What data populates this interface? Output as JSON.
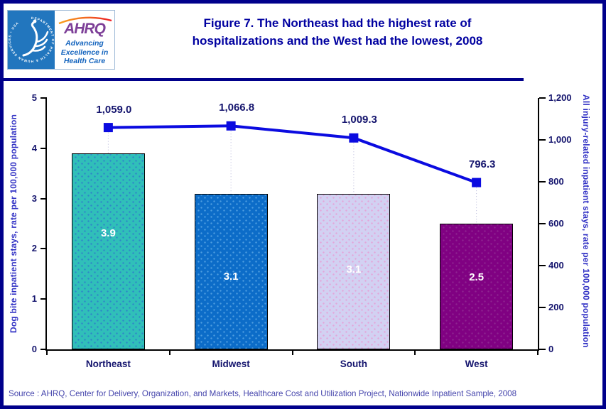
{
  "page": {
    "frame_color": "#00008B",
    "background": "#FFFFFF"
  },
  "header": {
    "title_line1": "Figure 7. The Northeast had the highest rate of",
    "title_line2": "hospitalizations and the West had the lowest, 2008",
    "title_color": "#0000A0",
    "logo": {
      "hhs_seal_text": "DEPARTMENT OF HEALTH & HUMAN SERVICES • USA",
      "ahrq_acronym": "AHRQ",
      "tagline_line1": "Advancing",
      "tagline_line2": "Excellence in",
      "tagline_line3": "Health Care",
      "ahrq_purple": "#7D3F98",
      "hhs_blue": "#2276BE"
    }
  },
  "chart_data": {
    "type": "bar+line",
    "categories": [
      "Northeast",
      "Midwest",
      "South",
      "West"
    ],
    "series": [
      {
        "name": "Dog bite inpatient stays, rate per 100,000 population",
        "type": "bar",
        "axis": "left",
        "values": [
          3.9,
          3.1,
          3.1,
          2.5
        ],
        "value_labels": [
          "3.9",
          "3.1",
          "3.1",
          "2.5"
        ],
        "bar_base_colors": [
          "#30BFB9",
          "#0C6CC8",
          "#D2D1F2",
          "#800182"
        ],
        "bar_dot_colors": [
          "#2E86C8",
          "#4D9DE0",
          "#E3A6D9",
          "#8E2490"
        ]
      },
      {
        "name": "All injury-related inpatient stays, rate per 100,000 population",
        "type": "line",
        "axis": "right",
        "values": [
          1059.0,
          1066.8,
          1009.3,
          796.3
        ],
        "value_labels": [
          "1,059.0",
          "1,066.8",
          "1,009.3",
          "796.3"
        ],
        "line_color": "#0B0BE0"
      }
    ],
    "left_axis": {
      "label": "Dog bite inpatient stays, rate per 100,000 population",
      "min": 0,
      "max": 5,
      "tick_values": [
        0,
        1,
        2,
        3,
        4,
        5
      ],
      "tick_labels": [
        "0",
        "1",
        "2",
        "3",
        "4",
        "5"
      ]
    },
    "right_axis": {
      "label": "All  injury-related inpatient stays, rate per 100,000 population",
      "min": 0,
      "max": 1200,
      "tick_values": [
        0,
        200,
        400,
        600,
        800,
        1000,
        1200
      ],
      "tick_labels": [
        "0",
        "200",
        "400",
        "600",
        "800",
        "1,000",
        "1,200"
      ]
    },
    "grid": false,
    "legend": "none"
  },
  "footer": {
    "source_text": "Source : AHRQ, Center for Delivery, Organization, and Markets, Healthcare Cost and Utilization Project, Nationwide Inpatient Sample, 2008"
  }
}
